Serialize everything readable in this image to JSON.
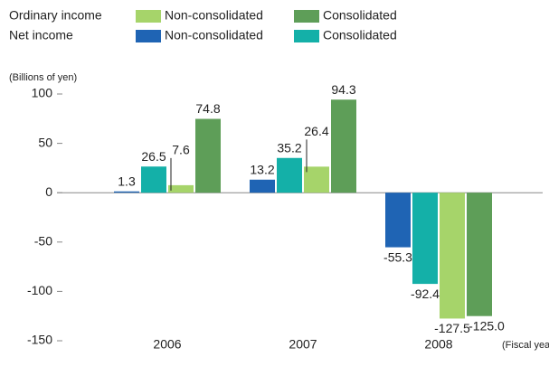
{
  "chart_data": {
    "type": "bar",
    "y_label": "(Billions of yen)",
    "x_label": "(Fiscal year)",
    "categories": [
      "2006",
      "2007",
      "2008"
    ],
    "series": [
      {
        "name": "Non-consolidated",
        "group": "Net income",
        "color": "#1f64b4",
        "values": [
          1.3,
          13.2,
          -55.3
        ]
      },
      {
        "name": "Consolidated",
        "group": "Net income",
        "color": "#14b0a8",
        "values": [
          26.5,
          35.2,
          -92.4
        ]
      },
      {
        "name": "Non-consolidated",
        "group": "Ordinary income",
        "color": "#a6d46a",
        "values": [
          7.6,
          26.4,
          -127.5
        ]
      },
      {
        "name": "Consolidated",
        "group": "Ordinary income",
        "color": "#5e9e58",
        "values": [
          74.8,
          94.3,
          -125
        ],
        "value_labels": [
          "74.8",
          "94.3",
          "-125.0"
        ]
      }
    ],
    "ylim": [
      -150,
      100
    ],
    "yticks": [
      100,
      50,
      0,
      -50,
      -100,
      -150
    ]
  }
}
